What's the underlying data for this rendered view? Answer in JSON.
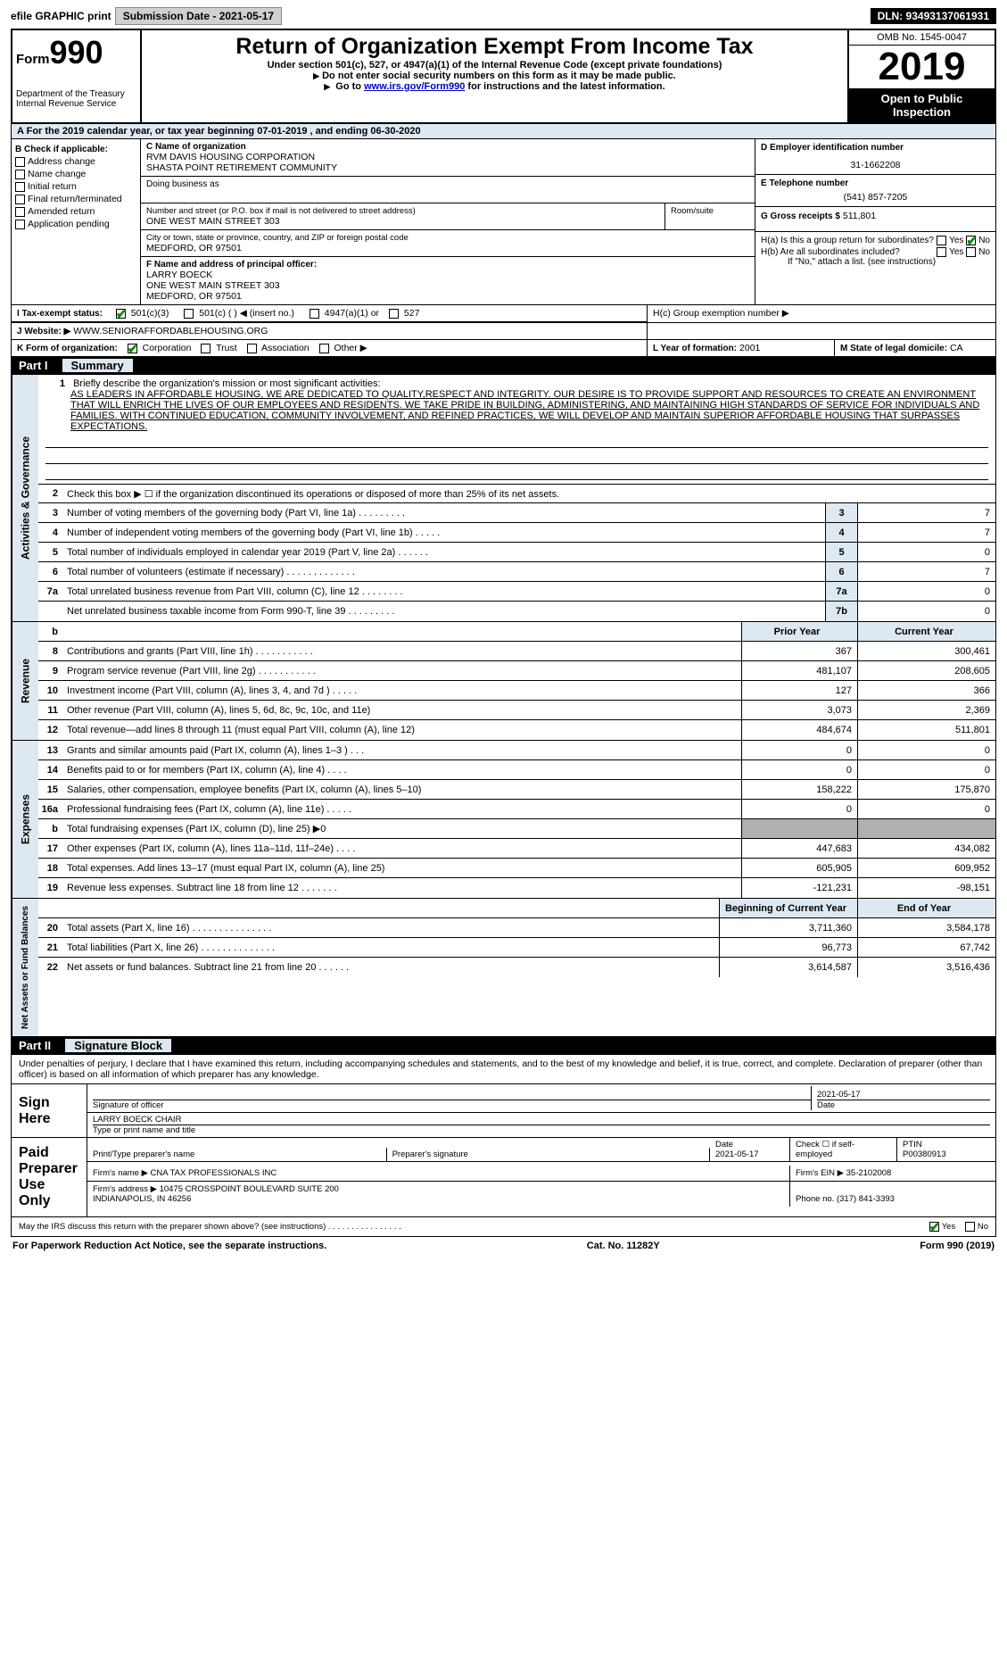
{
  "colors": {
    "section_bg": "#dde8f0",
    "black": "#000000",
    "grey": "#b0b0b0",
    "check": "#0a8a0a",
    "link": "#0000cc"
  },
  "topbar": {
    "efile": "efile GRAPHIC print",
    "sub_label": "Submission Date - 2021-05-17",
    "dln": "DLN: 93493137061931"
  },
  "header": {
    "form": "Form",
    "num": "990",
    "dept": "Department of the Treasury\nInternal Revenue Service",
    "title": "Return of Organization Exempt From Income Tax",
    "sub1": "Under section 501(c), 527, or 4947(a)(1) of the Internal Revenue Code (except private foundations)",
    "sub2": "Do not enter social security numbers on this form as it may be made public.",
    "sub3_pre": "Go to ",
    "sub3_link": "www.irs.gov/Form990",
    "sub3_post": " for instructions and the latest information.",
    "omb": "OMB No. 1545-0047",
    "year": "2019",
    "open": "Open to Public Inspection"
  },
  "A": {
    "text": "For the 2019 calendar year, or tax year beginning 07-01-2019   , and ending 06-30-2020"
  },
  "B": {
    "label": "B Check if applicable:",
    "items": [
      "Address change",
      "Name change",
      "Initial return",
      "Final return/terminated",
      "Amended return",
      "Application pending"
    ]
  },
  "C": {
    "name_label": "C Name of organization",
    "name1": "RVM DAVIS HOUSING CORPORATION",
    "name2": "SHASTA POINT RETIREMENT COMMUNITY",
    "dba_label": "Doing business as",
    "street_label": "Number and street (or P.O. box if mail is not delivered to street address)",
    "street": "ONE WEST MAIN STREET 303",
    "room_label": "Room/suite",
    "city_label": "City or town, state or province, country, and ZIP or foreign postal code",
    "city": "MEDFORD, OR  97501",
    "F_label": "F Name and address of principal officer:",
    "F_name": "LARRY BOECK",
    "F_street": "ONE WEST MAIN STREET 303",
    "F_city": "MEDFORD, OR  97501"
  },
  "D": {
    "label": "D Employer identification number",
    "value": "31-1662208"
  },
  "E": {
    "label": "E Telephone number",
    "value": "(541) 857-7205"
  },
  "G": {
    "label": "G Gross receipts $",
    "value": "511,801"
  },
  "H": {
    "a": "H(a)  Is this a group return for subordinates?",
    "b": "H(b)  Are all subordinates included?",
    "b_note": "If \"No,\" attach a list. (see instructions)",
    "c": "H(c)  Group exemption number ▶",
    "yes": "Yes",
    "no": "No"
  },
  "I": {
    "label": "I   Tax-exempt status:",
    "opts": [
      "501(c)(3)",
      "501(c) (  ) ◀ (insert no.)",
      "4947(a)(1) or",
      "527"
    ]
  },
  "J": {
    "label": "J   Website: ▶",
    "value": "WWW.SENIORAFFORDABLEHOUSING.ORG"
  },
  "K": {
    "label": "K Form of organization:",
    "opts": [
      "Corporation",
      "Trust",
      "Association",
      "Other ▶"
    ]
  },
  "L": {
    "label": "L Year of formation:",
    "value": "2001"
  },
  "M": {
    "label": "M State of legal domicile:",
    "value": "CA"
  },
  "part1": {
    "label": "Part I",
    "title": "Summary"
  },
  "vtabs": {
    "act": "Activities & Governance",
    "rev": "Revenue",
    "exp": "Expenses",
    "net": "Net Assets or Fund Balances"
  },
  "mission": {
    "prompt": "Briefly describe the organization's mission or most significant activities:",
    "text": "AS LEADERS IN AFFORDABLE HOUSING, WE ARE DEDICATED TO QUALITY,RESPECT AND INTEGRITY. OUR DESIRE IS TO PROVIDE SUPPORT AND RESOURCES TO CREATE AN ENVIRONMENT THAT WILL ENRICH THE LIVES OF OUR EMPLOYEES AND RESIDENTS. WE TAKE PRIDE IN BUILDING, ADMINISTERING, AND MAINTAINING HIGH STANDARDS OF SERVICE FOR INDIVIDUALS AND FAMILIES. WITH CONTINUED EDUCATION, COMMUNITY INVOLVEMENT, AND REFINED PRACTICES, WE WILL DEVELOP AND MAINTAIN SUPERIOR AFFORDABLE HOUSING THAT SURPASSES EXPECTATIONS."
  },
  "gov": {
    "l2": "Check this box ▶ ☐ if the organization discontinued its operations or disposed of more than 25% of its net assets.",
    "rows": [
      {
        "n": "3",
        "t": "Number of voting members of the governing body (Part VI, line 1a)  .  .  .  .  .  .  .  .  .",
        "k": "3",
        "v": "7"
      },
      {
        "n": "4",
        "t": "Number of independent voting members of the governing body (Part VI, line 1b)   .  .  .  .  .",
        "k": "4",
        "v": "7"
      },
      {
        "n": "5",
        "t": "Total number of individuals employed in calendar year 2019 (Part V, line 2a)   .  .  .  .  .  .",
        "k": "5",
        "v": "0"
      },
      {
        "n": "6",
        "t": "Total number of volunteers (estimate if necessary)   .  .  .  .  .  .  .  .  .  .  .  .  .",
        "k": "6",
        "v": "7"
      },
      {
        "n": "7a",
        "t": "Total unrelated business revenue from Part VIII, column (C), line 12   .  .  .  .  .  .  .  .",
        "k": "7a",
        "v": "0"
      },
      {
        "n": "",
        "t": "Net unrelated business taxable income from Form 990-T, line 39   .  .  .  .  .  .  .  .  .",
        "k": "7b",
        "v": "0"
      }
    ]
  },
  "cols": {
    "prior": "Prior Year",
    "current": "Current Year",
    "boy": "Beginning of Current Year",
    "eoy": "End of Year"
  },
  "rev": [
    {
      "n": "8",
      "t": "Contributions and grants (Part VIII, line 1h)   .  .  .  .  .  .  .  .  .  .  .",
      "p": "367",
      "c": "300,461"
    },
    {
      "n": "9",
      "t": "Program service revenue (Part VIII, line 2g)   .  .  .  .  .  .  .  .  .  .  .",
      "p": "481,107",
      "c": "208,605"
    },
    {
      "n": "10",
      "t": "Investment income (Part VIII, column (A), lines 3, 4, and 7d )   .  .  .  .  .",
      "p": "127",
      "c": "366"
    },
    {
      "n": "11",
      "t": "Other revenue (Part VIII, column (A), lines 5, 6d, 8c, 9c, 10c, and 11e)",
      "p": "3,073",
      "c": "2,369"
    },
    {
      "n": "12",
      "t": "Total revenue—add lines 8 through 11 (must equal Part VIII, column (A), line 12)",
      "p": "484,674",
      "c": "511,801"
    }
  ],
  "exp": [
    {
      "n": "13",
      "t": "Grants and similar amounts paid (Part IX, column (A), lines 1–3 )   .  .  .",
      "p": "0",
      "c": "0"
    },
    {
      "n": "14",
      "t": "Benefits paid to or for members (Part IX, column (A), line 4)   .  .  .  .",
      "p": "0",
      "c": "0"
    },
    {
      "n": "15",
      "t": "Salaries, other compensation, employee benefits (Part IX, column (A), lines 5–10)",
      "p": "158,222",
      "c": "175,870"
    },
    {
      "n": "16a",
      "t": "Professional fundraising fees (Part IX, column (A), line 11e)   .  .  .  .  .",
      "p": "0",
      "c": "0"
    },
    {
      "n": "b",
      "t": "Total fundraising expenses (Part IX, column (D), line 25) ▶0",
      "p": "",
      "c": "",
      "g": true
    },
    {
      "n": "17",
      "t": "Other expenses (Part IX, column (A), lines 11a–11d, 11f–24e)   .  .  .  .",
      "p": "447,683",
      "c": "434,082"
    },
    {
      "n": "18",
      "t": "Total expenses. Add lines 13–17 (must equal Part IX, column (A), line 25)",
      "p": "605,905",
      "c": "609,952"
    },
    {
      "n": "19",
      "t": "Revenue less expenses. Subtract line 18 from line 12   .  .  .  .  .  .  .",
      "p": "-121,231",
      "c": "-98,151"
    }
  ],
  "net": [
    {
      "n": "20",
      "t": "Total assets (Part X, line 16)   .  .  .  .  .  .  .  .  .  .  .  .  .  .  .",
      "p": "3,711,360",
      "c": "3,584,178"
    },
    {
      "n": "21",
      "t": "Total liabilities (Part X, line 26)   .  .  .  .  .  .  .  .  .  .  .  .  .  .",
      "p": "96,773",
      "c": "67,742"
    },
    {
      "n": "22",
      "t": "Net assets or fund balances. Subtract line 21 from line 20   .  .  .  .  .  .",
      "p": "3,614,587",
      "c": "3,516,436"
    }
  ],
  "part2": {
    "label": "Part II",
    "title": "Signature Block"
  },
  "sig": {
    "para": "Under penalties of perjury, I declare that I have examined this return, including accompanying schedules and statements, and to the best of my knowledge and belief, it is true, correct, and complete. Declaration of preparer (other than officer) is based on all information of which preparer has any knowledge.",
    "sign": "Sign Here",
    "sig_officer": "Signature of officer",
    "date": "Date",
    "date_val": "2021-05-17",
    "name_title": "LARRY BOECK CHAIR",
    "name_title_label": "Type or print name and title",
    "paid": "Paid Preparer Use Only",
    "prep_name_label": "Print/Type preparer's name",
    "prep_sig_label": "Preparer's signature",
    "prep_date": "2021-05-17",
    "check_if": "Check ☐ if self-employed",
    "ptin_label": "PTIN",
    "ptin": "P00380913",
    "firm_name_label": "Firm's name   ▶",
    "firm_name": "CNA TAX PROFESSIONALS INC",
    "firm_ein_label": "Firm's EIN ▶",
    "firm_ein": "35-2102008",
    "firm_addr_label": "Firm's address ▶",
    "firm_addr": "10475 CROSSPOINT BOULEVARD SUITE 200\nINDIANAPOLIS, IN  46256",
    "phone_label": "Phone no.",
    "phone": "(317) 841-3393",
    "discuss": "May the IRS discuss this return with the preparer shown above? (see instructions)   .  .  .  .  .  .  .  .  .  .  .  .  .  .  .  .",
    "yes": "Yes",
    "no": "No"
  },
  "footer": {
    "left": "For Paperwork Reduction Act Notice, see the separate instructions.",
    "mid": "Cat. No. 11282Y",
    "right_pre": "Form ",
    "right_b": "990",
    "right_post": " (2019)"
  }
}
